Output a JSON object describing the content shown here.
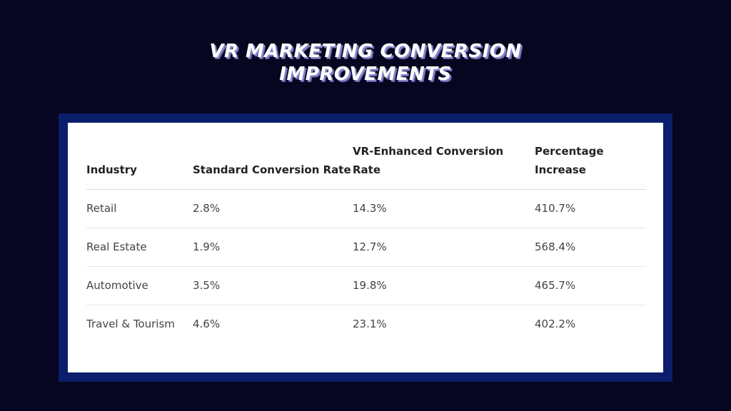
{
  "title": {
    "line1": "VR MARKETING CONVERSION",
    "line2": "IMPROVEMENTS"
  },
  "table": {
    "headers": [
      "Industry",
      "Standard Conversion Rate",
      "VR-Enhanced Conversion Rate",
      "Percentage Increase"
    ],
    "rows": [
      [
        "Retail",
        "2.8%",
        "14.3%",
        "410.7%"
      ],
      [
        "Real Estate",
        "1.9%",
        "12.7%",
        "568.4%"
      ],
      [
        "Automotive",
        "3.5%",
        "19.8%",
        "465.7%"
      ],
      [
        "Travel & Tourism",
        "4.6%",
        "23.1%",
        "402.2%"
      ]
    ]
  },
  "colors": {
    "background": "#060620",
    "frame": "#0a1e6c",
    "card": "#ffffff"
  }
}
